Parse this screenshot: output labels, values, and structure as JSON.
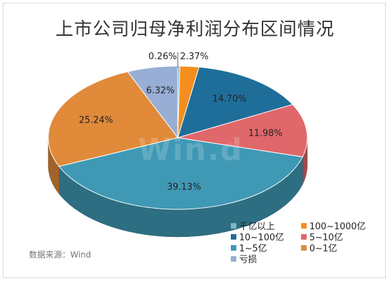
{
  "title": "上市公司归母净利润分布区间情况",
  "source": "数据来源：Wind",
  "watermark": "Win.d",
  "chart_data": {
    "type": "pie",
    "title": "上市公司归母净利润分布区间情况",
    "three_d": true,
    "slices": [
      {
        "label": "千亿以上",
        "value": 0.26,
        "display": "0.26%",
        "color": "#7FB6C8"
      },
      {
        "label": "100~1000亿",
        "value": 2.37,
        "display": "2.37%",
        "color": "#F58E1E"
      },
      {
        "label": "10~100亿",
        "value": 14.7,
        "display": "14.70%",
        "color": "#1F6E9A"
      },
      {
        "label": "5~10亿",
        "value": 11.98,
        "display": "11.98%",
        "color": "#E0676A"
      },
      {
        "label": "1~5亿",
        "value": 39.13,
        "display": "39.13%",
        "color": "#3F99B5"
      },
      {
        "label": "0~1亿",
        "value": 25.24,
        "display": "25.24%",
        "color": "#E08A3A"
      },
      {
        "label": "亏损",
        "value": 6.32,
        "display": "6.32%",
        "color": "#99AED4"
      }
    ],
    "legend_position": "bottom-right"
  }
}
